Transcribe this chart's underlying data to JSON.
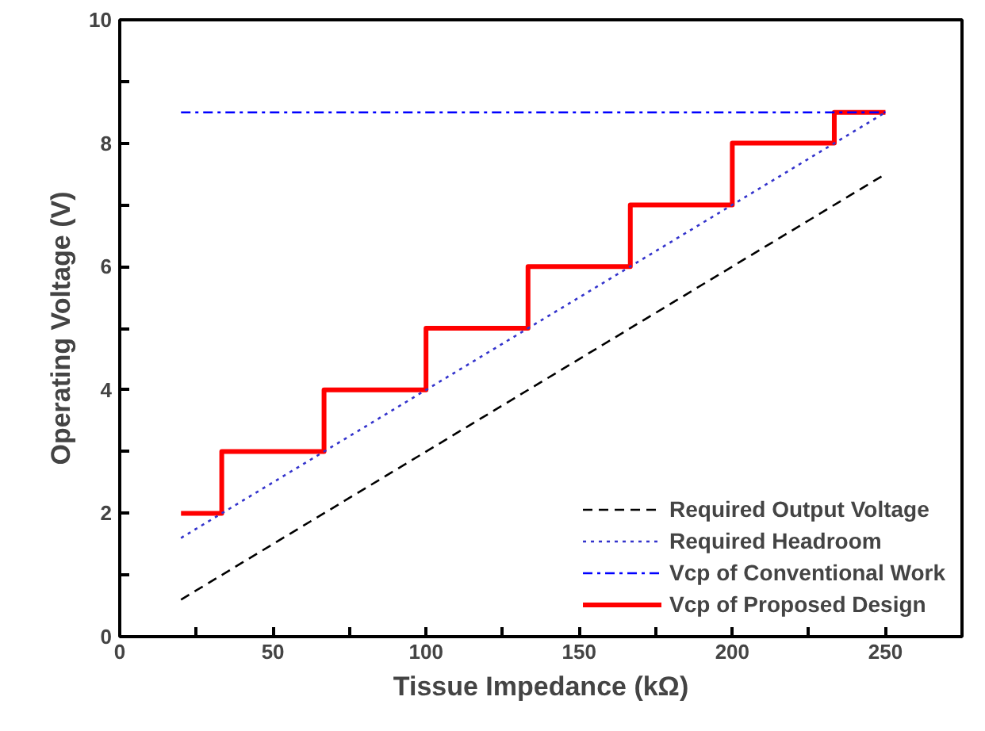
{
  "chart_data": {
    "type": "line",
    "xlabel": "Tissue Impedance (kΩ)",
    "ylabel": "Operating Voltage (V)",
    "xlim": [
      0,
      275
    ],
    "ylim": [
      0,
      10
    ],
    "xticks": [
      0,
      {
        "value": 25,
        "label": null
      },
      50,
      {
        "value": 75,
        "label": null
      },
      100,
      {
        "value": 125,
        "label": null
      },
      150,
      {
        "value": 175,
        "label": null
      },
      200,
      {
        "value": 225,
        "label": null
      },
      250
    ],
    "yticks": [
      0,
      {
        "value": 1,
        "label": null
      },
      2,
      {
        "value": 3,
        "label": null
      },
      4,
      {
        "value": 5,
        "label": null
      },
      6,
      {
        "value": 7,
        "label": null
      },
      8,
      {
        "value": 9,
        "label": null
      },
      10
    ],
    "grid": false,
    "legend": "bottom right",
    "marker": "none",
    "series": [
      {
        "name": "Required Output Voltage",
        "color": "#000000",
        "line_style": "dashed",
        "x": [
          20,
          250
        ],
        "values": [
          0.6,
          7.5
        ]
      },
      {
        "name": "Required Headroom",
        "color": "#3333cc",
        "line_style": "dotted",
        "x": [
          20,
          250
        ],
        "values": [
          1.6,
          8.5
        ]
      },
      {
        "name": "Vcp of Conventional Work",
        "color": "#0000ff",
        "line_style": "dashdot",
        "x": [
          20,
          250
        ],
        "values": [
          8.5,
          8.5
        ]
      },
      {
        "name": "Vcp of Proposed Design",
        "type": "step",
        "color": "#ff0000",
        "line_style": "solid",
        "x": [
          20,
          33.3,
          66.7,
          100,
          133.3,
          166.7,
          200,
          233.3,
          250
        ],
        "values": [
          2,
          3,
          4,
          5,
          6,
          7,
          8,
          8.5,
          8.5
        ]
      }
    ]
  }
}
